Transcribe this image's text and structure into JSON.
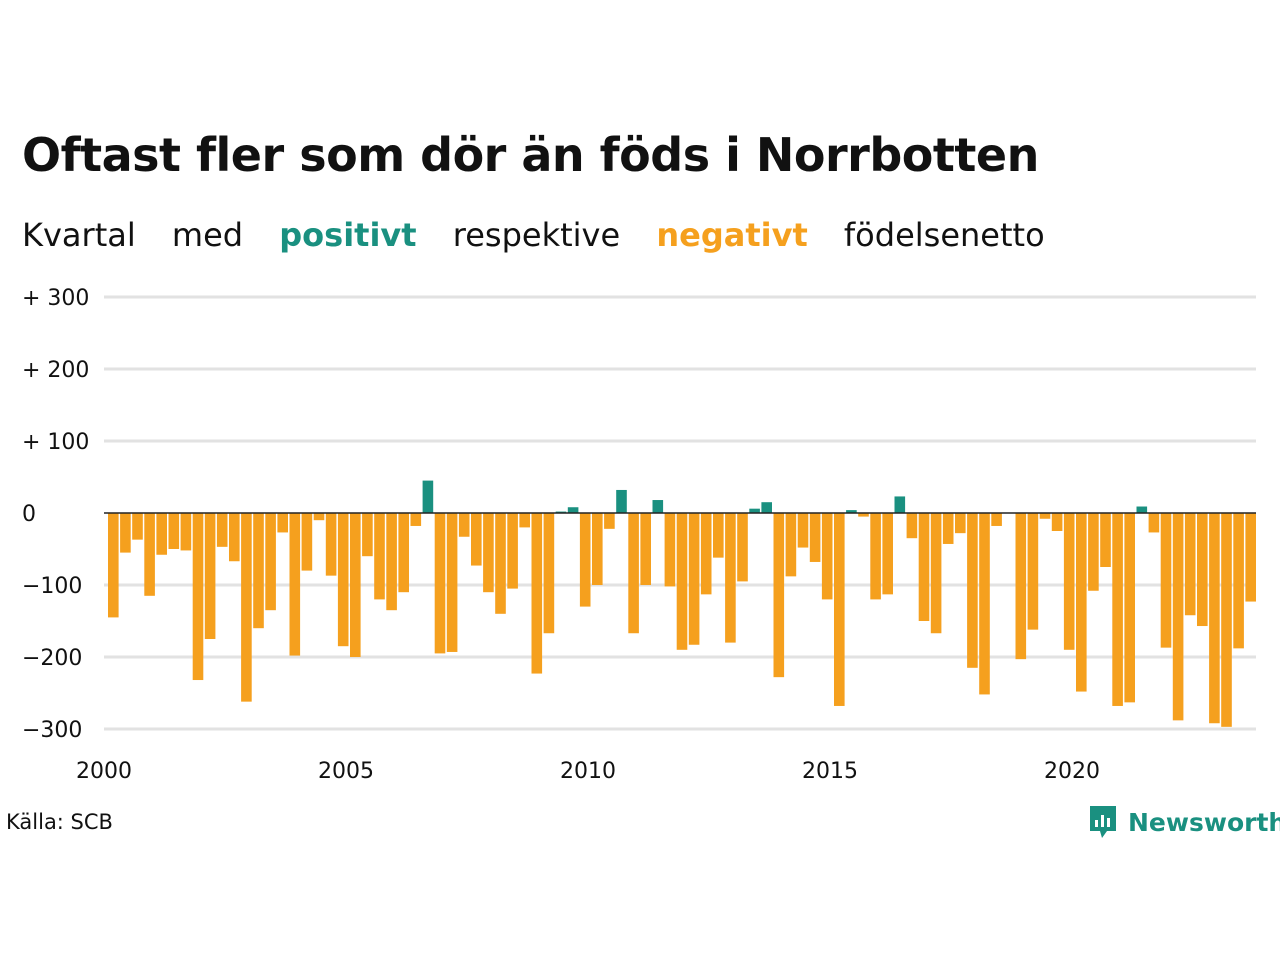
{
  "title": "Oftast fler som dör än föds i Norrbotten",
  "subtitle": {
    "w1": "Kvartal",
    "w2": "med",
    "positive_word": "positivt",
    "w3": "respektive",
    "negative_word": "negativt",
    "w4": "födelsenetto"
  },
  "source": "Källa: SCB",
  "logo": {
    "text": "Newsworthy",
    "icon": "newsworthy-logo-icon"
  },
  "colors": {
    "positive": "#1a9080",
    "negative": "#f5a01e",
    "grid": "#e2e2e2",
    "zero_line": "#222222"
  },
  "chart_data": {
    "type": "bar",
    "title": "Oftast fler som dör än föds i Norrbotten",
    "xlabel": "",
    "ylabel": "",
    "ylim": [
      -300,
      300
    ],
    "y_ticks": [
      {
        "value": 300,
        "label": "+ 300"
      },
      {
        "value": 200,
        "label": "+ 200"
      },
      {
        "value": 100,
        "label": "+ 100"
      },
      {
        "value": 0,
        "label": "0"
      },
      {
        "value": -100,
        "label": "−100"
      },
      {
        "value": -200,
        "label": "−200"
      },
      {
        "value": -300,
        "label": "−300"
      }
    ],
    "x_ticks": [
      "2000",
      "2005",
      "2010",
      "2015",
      "2020"
    ],
    "grid": true,
    "start": "2000 Q1",
    "end": "2023 Q4",
    "values": [
      -145,
      -55,
      -37,
      -115,
      -58,
      -50,
      -52,
      -232,
      -175,
      -47,
      -67,
      -262,
      -160,
      -135,
      -27,
      -198,
      -80,
      -10,
      -87,
      -185,
      -200,
      -60,
      -120,
      -135,
      -110,
      -18,
      45,
      -195,
      -193,
      -33,
      -73,
      -110,
      -140,
      -105,
      -20,
      -223,
      -167,
      2,
      8,
      -130,
      -100,
      -22,
      32,
      -167,
      -100,
      18,
      -102,
      -190,
      -183,
      -113,
      -62,
      -180,
      -95,
      6,
      15,
      -228,
      -88,
      -48,
      -68,
      -120,
      -268,
      4,
      -5,
      -120,
      -113,
      23,
      -35,
      -150,
      -167,
      -43,
      -28,
      -215,
      -252,
      -18,
      0,
      -203,
      -162,
      -8,
      -25,
      -190,
      -248,
      -108,
      -75,
      -268,
      -263,
      9,
      -27,
      -187,
      -288,
      -142,
      -157,
      -292,
      -297,
      -188,
      -123,
      0
    ]
  }
}
